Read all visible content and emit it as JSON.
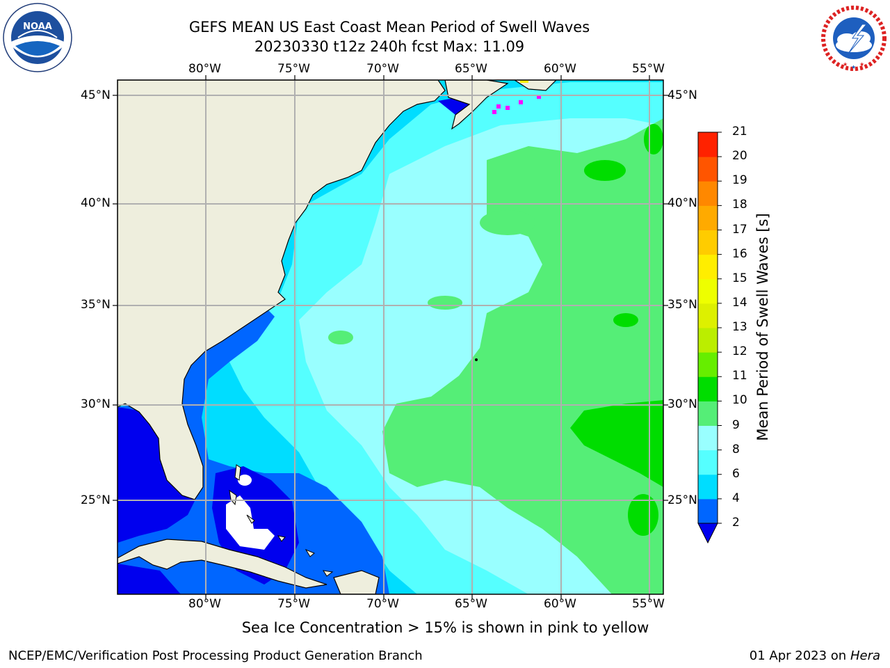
{
  "header": {
    "title_line1": "GEFS MEAN US East Coast Mean Period of Swell Waves",
    "title_line2": "20230330 t12z 240h fcst   Max: 11.09"
  },
  "logos": {
    "left": {
      "name": "noaa-logo",
      "text": "NOAA",
      "ring_text": "NATIONAL OCEANIC AND ATMOSPHERIC ADMINISTRATION · U.S. DEPARTMENT OF COMMERCE"
    },
    "right": {
      "name": "nws-logo",
      "ring_text": "NATIONAL WEATHER SERVICE"
    }
  },
  "map": {
    "lon_labels": [
      "80°W",
      "75°W",
      "70°W",
      "65°W",
      "60°W",
      "55°W"
    ],
    "lat_labels": [
      "45°N",
      "40°N",
      "35°N",
      "30°N",
      "25°N"
    ],
    "colors": {
      "land": "#eeeedd",
      "frame": "#000000",
      "grid": "#b0b0b0"
    }
  },
  "colorbar": {
    "label": "Mean Period of Swell Waves [s]",
    "ticks": [
      "2",
      "4",
      "6",
      "8",
      "9",
      "10",
      "11",
      "12",
      "13",
      "14",
      "15",
      "16",
      "17",
      "18",
      "19",
      "20",
      "21"
    ],
    "colors": [
      "#0066ff",
      "#00ddff",
      "#55ffff",
      "#99ffff",
      "#55ee77",
      "#00dd00",
      "#66ee00",
      "#bbee00",
      "#ddf000",
      "#eeff00",
      "#ffee00",
      "#ffcc00",
      "#ffaa00",
      "#ff8800",
      "#ff5500",
      "#ff2200",
      "#ff0000"
    ],
    "under_color": "#0000ee"
  },
  "footer": {
    "note": "Sea Ice Concentration > 15% is shown in pink to yellow",
    "left": "NCEP/EMC/Verification Post Processing Product Generation Branch",
    "right_date": "01 Apr 2023 on ",
    "right_host": "Hera"
  }
}
